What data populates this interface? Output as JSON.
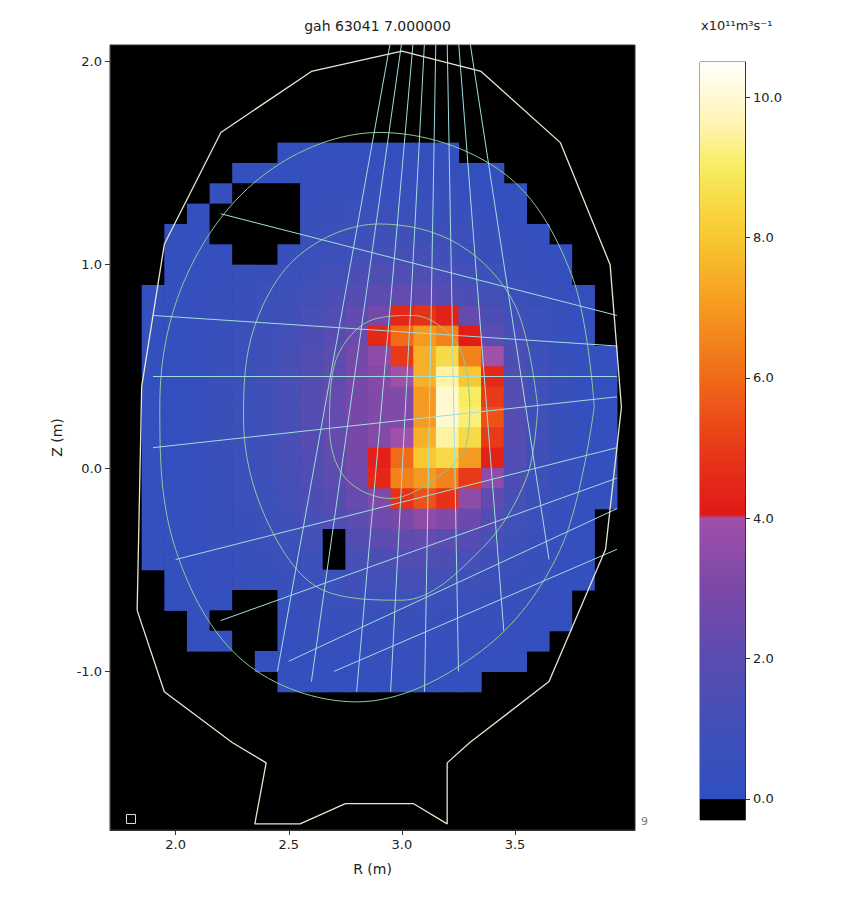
{
  "chart_data": {
    "type": "heatmap",
    "title": "gah 63041 7.000000",
    "xlabel": "R (m)",
    "ylabel": "Z (m)",
    "xlim": [
      1.71,
      4.03
    ],
    "ylim": [
      -1.78,
      2.08
    ],
    "xticks": [
      {
        "value": 2,
        "label": "2.0"
      },
      {
        "value": 2.5,
        "label": "2.5"
      },
      {
        "value": 3,
        "label": "3.0"
      },
      {
        "value": 3.5,
        "label": "3.5"
      }
    ],
    "yticks": [
      {
        "value": -1,
        "label": "-1.0"
      },
      {
        "value": 0,
        "label": "0.0"
      },
      {
        "value": 1,
        "label": "1.0"
      },
      {
        "value": 2,
        "label": "2.0"
      }
    ],
    "grid": false,
    "R": [
      1.9,
      2.0,
      2.1,
      2.2,
      2.3,
      2.4,
      2.5,
      2.6,
      2.7,
      2.8,
      2.9,
      3.0,
      3.1,
      3.2,
      3.3,
      3.4,
      3.5,
      3.6,
      3.7,
      3.8,
      3.9
    ],
    "Z": [
      1.55,
      1.45,
      1.35,
      1.25,
      1.15,
      1.05,
      0.95,
      0.85,
      0.75,
      0.65,
      0.55,
      0.45,
      0.35,
      0.25,
      0.15,
      0.05,
      -0.05,
      -0.15,
      -0.25,
      -0.35,
      -0.45,
      -0.55,
      -0.65,
      -0.75,
      -0.85,
      -0.95,
      -1.05
    ],
    "cells": [
      [
        null,
        null,
        null,
        null,
        null,
        null,
        0.3,
        0.3,
        0.3,
        0.3,
        0.3,
        0.3,
        0.3,
        0.3,
        null,
        null,
        null,
        null,
        null,
        null,
        null
      ],
      [
        null,
        null,
        null,
        null,
        0.3,
        0.3,
        0.3,
        0.4,
        0.4,
        0.4,
        0.4,
        0.4,
        0.4,
        0.4,
        0.3,
        0.3,
        null,
        null,
        null,
        null,
        null
      ],
      [
        null,
        null,
        null,
        0.3,
        -0.2,
        -0.2,
        -0.2,
        0.4,
        0.5,
        0.5,
        0.5,
        0.5,
        0.5,
        0.5,
        0.4,
        0.3,
        0.3,
        null,
        null,
        null,
        null
      ],
      [
        null,
        null,
        0.3,
        -0.2,
        -0.2,
        -0.2,
        -0.2,
        0.5,
        0.6,
        0.7,
        0.7,
        0.7,
        0.7,
        0.6,
        0.5,
        0.4,
        0.3,
        null,
        null,
        null,
        null
      ],
      [
        null,
        0.3,
        0.3,
        -0.2,
        -0.2,
        -0.2,
        -0.2,
        0.6,
        0.8,
        0.9,
        1.0,
        1.0,
        0.9,
        0.8,
        0.7,
        0.5,
        0.4,
        0.3,
        null,
        null,
        null
      ],
      [
        null,
        0.3,
        0.3,
        0.3,
        -0.2,
        -0.2,
        0.5,
        0.7,
        0.9,
        1.1,
        1.2,
        1.2,
        1.2,
        1.0,
        0.8,
        0.6,
        0.5,
        0.4,
        0.3,
        null,
        null
      ],
      [
        null,
        0.3,
        0.3,
        0.4,
        0.5,
        0.6,
        0.7,
        0.9,
        1.1,
        1.4,
        1.6,
        1.7,
        1.6,
        1.4,
        1.1,
        0.9,
        0.6,
        0.5,
        0.3,
        null,
        null
      ],
      [
        0.3,
        0.3,
        0.4,
        0.5,
        0.6,
        0.7,
        0.9,
        1.1,
        1.4,
        1.8,
        2.1,
        2.3,
        2.2,
        1.9,
        1.5,
        1.1,
        0.8,
        0.6,
        0.4,
        0.3,
        null
      ],
      [
        0.3,
        0.3,
        0.4,
        0.5,
        0.6,
        0.8,
        1.0,
        1.3,
        1.7,
        2.2,
        2.8,
        4.5,
        4.8,
        4.3,
        2.3,
        1.5,
        1.0,
        0.7,
        0.5,
        0.3,
        null
      ],
      [
        0.3,
        0.3,
        0.4,
        0.5,
        0.7,
        0.9,
        1.1,
        1.5,
        1.9,
        2.5,
        4.5,
        6.0,
        7.0,
        6.5,
        4.2,
        2.0,
        1.3,
        0.8,
        0.5,
        0.3,
        null
      ],
      [
        0.3,
        0.3,
        0.4,
        0.5,
        0.7,
        0.9,
        1.2,
        1.6,
        2.1,
        2.8,
        3.5,
        5.0,
        7.5,
        8.5,
        6.5,
        4.0,
        1.5,
        0.9,
        0.5,
        0.3,
        0.3
      ],
      [
        0.3,
        0.3,
        0.4,
        0.6,
        0.7,
        1.0,
        1.3,
        1.7,
        2.2,
        2.9,
        3.3,
        4.0,
        7.5,
        9.5,
        8.0,
        4.5,
        1.7,
        1.0,
        0.6,
        0.3,
        0.3
      ],
      [
        0.3,
        0.3,
        0.4,
        0.6,
        0.8,
        1.0,
        1.3,
        1.8,
        2.3,
        2.9,
        3.2,
        3.2,
        7.0,
        10.0,
        9.0,
        5.0,
        1.8,
        1.0,
        0.6,
        0.3,
        0.3
      ],
      [
        0.3,
        0.3,
        0.4,
        0.6,
        0.8,
        1.0,
        1.3,
        1.8,
        2.3,
        2.9,
        3.2,
        3.2,
        7.0,
        10.0,
        9.2,
        5.5,
        1.9,
        1.0,
        0.6,
        0.3,
        0.3
      ],
      [
        0.3,
        0.3,
        0.4,
        0.6,
        0.8,
        1.0,
        1.3,
        1.8,
        2.3,
        2.9,
        3.3,
        4.0,
        7.5,
        9.5,
        8.5,
        5.0,
        1.8,
        1.0,
        0.6,
        0.3,
        0.3
      ],
      [
        0.3,
        0.3,
        0.4,
        0.6,
        0.7,
        1.0,
        1.3,
        1.7,
        2.2,
        2.8,
        4.3,
        6.0,
        8.0,
        8.5,
        7.0,
        4.3,
        1.7,
        1.0,
        0.6,
        0.3,
        0.3
      ],
      [
        0.3,
        0.3,
        0.4,
        0.5,
        0.7,
        0.9,
        1.2,
        1.6,
        2.1,
        2.7,
        4.5,
        6.5,
        7.0,
        6.5,
        5.0,
        3.5,
        1.5,
        0.9,
        0.5,
        0.3,
        0.3
      ],
      [
        0.3,
        0.3,
        0.4,
        0.5,
        0.7,
        0.9,
        1.1,
        1.5,
        1.9,
        2.4,
        3.2,
        4.8,
        5.5,
        4.8,
        3.5,
        2.2,
        1.3,
        0.8,
        0.5,
        0.3,
        0.3
      ],
      [
        0.3,
        0.3,
        0.4,
        0.5,
        0.6,
        0.8,
        1.0,
        1.3,
        1.7,
        2.1,
        2.6,
        3.0,
        3.5,
        3.2,
        2.5,
        1.7,
        1.1,
        0.7,
        0.4,
        0.3,
        null
      ],
      [
        0.3,
        0.3,
        0.4,
        0.5,
        0.6,
        0.7,
        0.9,
        1.1,
        -0.2,
        1.7,
        2.0,
        2.2,
        2.3,
        2.1,
        1.8,
        1.3,
        0.9,
        0.6,
        0.4,
        0.3,
        null
      ],
      [
        0.3,
        0.3,
        0.3,
        0.4,
        0.5,
        0.6,
        0.7,
        0.9,
        -0.2,
        1.3,
        1.5,
        1.6,
        1.6,
        1.5,
        1.3,
        1.0,
        0.7,
        0.5,
        0.4,
        0.3,
        null
      ],
      [
        null,
        0.3,
        0.3,
        0.4,
        0.4,
        0.5,
        0.6,
        0.7,
        0.9,
        1.0,
        1.1,
        1.2,
        1.2,
        1.1,
        1.0,
        0.8,
        0.6,
        0.5,
        0.3,
        0.3,
        null
      ],
      [
        null,
        0.3,
        0.3,
        0.3,
        -0.2,
        -0.2,
        0.5,
        0.6,
        0.7,
        0.8,
        0.8,
        0.9,
        0.9,
        0.8,
        0.7,
        0.6,
        0.5,
        0.4,
        0.3,
        null,
        null
      ],
      [
        null,
        null,
        0.3,
        -0.2,
        -0.2,
        -0.2,
        0.4,
        0.5,
        0.5,
        0.6,
        0.6,
        0.6,
        0.6,
        0.6,
        0.5,
        0.5,
        0.4,
        0.3,
        0.3,
        null,
        null
      ],
      [
        null,
        null,
        0.3,
        0.3,
        -0.2,
        -0.2,
        0.3,
        0.4,
        0.4,
        0.4,
        0.5,
        0.5,
        0.5,
        0.4,
        0.4,
        0.4,
        0.3,
        0.3,
        null,
        null,
        null
      ],
      [
        null,
        null,
        null,
        null,
        -0.2,
        0.3,
        0.3,
        0.3,
        0.3,
        0.3,
        0.4,
        0.4,
        0.4,
        0.3,
        0.3,
        0.3,
        0.3,
        null,
        null,
        null,
        null
      ],
      [
        null,
        null,
        null,
        null,
        null,
        null,
        0.3,
        0.3,
        0.3,
        0.3,
        0.3,
        0.3,
        0.3,
        0.3,
        0.3,
        null,
        null,
        null,
        null,
        null,
        null
      ]
    ],
    "colorbar": {
      "label": "x10¹¹m³s⁻¹",
      "lim": [
        -0.3,
        10.5
      ],
      "ticks": [
        {
          "value": 0,
          "label": "0.0"
        },
        {
          "value": 2,
          "label": "2.0"
        },
        {
          "value": 4,
          "label": "4.0"
        },
        {
          "value": 6,
          "label": "6.0"
        },
        {
          "value": 8,
          "label": "8.0"
        },
        {
          "value": 10,
          "label": "10.0"
        }
      ]
    },
    "wall": {
      "R": [
        1.83,
        1.85,
        1.95,
        2.2,
        2.6,
        3.0,
        3.35,
        3.7,
        3.92,
        3.97,
        3.9,
        3.65,
        3.3,
        3.2,
        3.2,
        3.05,
        2.75,
        2.55,
        2.35,
        2.4,
        2.25,
        1.95,
        1.83
      ],
      "Z": [
        -0.7,
        0.4,
        1.1,
        1.65,
        1.95,
        2.05,
        1.95,
        1.6,
        1.0,
        0.3,
        -0.4,
        -1.05,
        -1.35,
        -1.45,
        -1.75,
        -1.65,
        -1.65,
        -1.75,
        -1.75,
        -1.45,
        -1.35,
        -1.1,
        -0.7
      ]
    },
    "flux_surfaces": [
      {
        "R": [
          3.85,
          3.75,
          3.45,
          2.9,
          2.4,
          2.05,
          1.93,
          2.0,
          2.3,
          2.8,
          3.35,
          3.7,
          3.85
        ],
        "Z": [
          0.3,
          0.95,
          1.45,
          1.65,
          1.45,
          0.95,
          0.3,
          -0.4,
          -0.95,
          -1.15,
          -0.9,
          -0.4,
          0.3
        ]
      },
      {
        "R": [
          3.6,
          3.5,
          3.25,
          2.9,
          2.55,
          2.35,
          2.3,
          2.4,
          2.65,
          3.0,
          3.35,
          3.55,
          3.6
        ],
        "Z": [
          0.3,
          0.8,
          1.1,
          1.2,
          1.05,
          0.7,
          0.25,
          -0.25,
          -0.6,
          -0.65,
          -0.4,
          -0.05,
          0.3
        ]
      },
      {
        "R": [
          3.3,
          3.25,
          3.05,
          2.85,
          2.7,
          2.68,
          2.75,
          2.95,
          3.15,
          3.28,
          3.3
        ],
        "Z": [
          0.3,
          0.6,
          0.75,
          0.72,
          0.5,
          0.2,
          -0.05,
          -0.15,
          -0.05,
          0.1,
          0.3
        ]
      }
    ],
    "lines_of_sight": [
      [
        [
          2.95,
          2.1
        ],
        [
          2.45,
          -1.0
        ]
      ],
      [
        [
          3.0,
          2.1
        ],
        [
          2.6,
          -1.05
        ]
      ],
      [
        [
          3.05,
          2.1
        ],
        [
          2.8,
          -1.1
        ]
      ],
      [
        [
          3.1,
          2.1
        ],
        [
          2.95,
          -1.1
        ]
      ],
      [
        [
          3.15,
          2.1
        ],
        [
          3.1,
          -1.1
        ]
      ],
      [
        [
          3.2,
          2.1
        ],
        [
          3.25,
          -1.0
        ]
      ],
      [
        [
          3.25,
          2.1
        ],
        [
          3.45,
          -0.8
        ]
      ],
      [
        [
          3.3,
          2.1
        ],
        [
          3.65,
          -0.45
        ]
      ],
      [
        [
          3.95,
          0.75
        ],
        [
          2.2,
          1.25
        ]
      ],
      [
        [
          3.95,
          0.6
        ],
        [
          1.9,
          0.75
        ]
      ],
      [
        [
          3.95,
          0.45
        ],
        [
          1.9,
          0.45
        ]
      ],
      [
        [
          3.95,
          0.35
        ],
        [
          1.9,
          0.1
        ]
      ],
      [
        [
          3.95,
          0.1
        ],
        [
          2.0,
          -0.45
        ]
      ],
      [
        [
          3.95,
          -0.05
        ],
        [
          2.2,
          -0.75
        ]
      ],
      [
        [
          3.95,
          -0.2
        ],
        [
          2.5,
          -0.95
        ]
      ],
      [
        [
          3.95,
          -0.4
        ],
        [
          2.7,
          -1.0
        ]
      ]
    ],
    "annotations": [
      "9"
    ]
  }
}
